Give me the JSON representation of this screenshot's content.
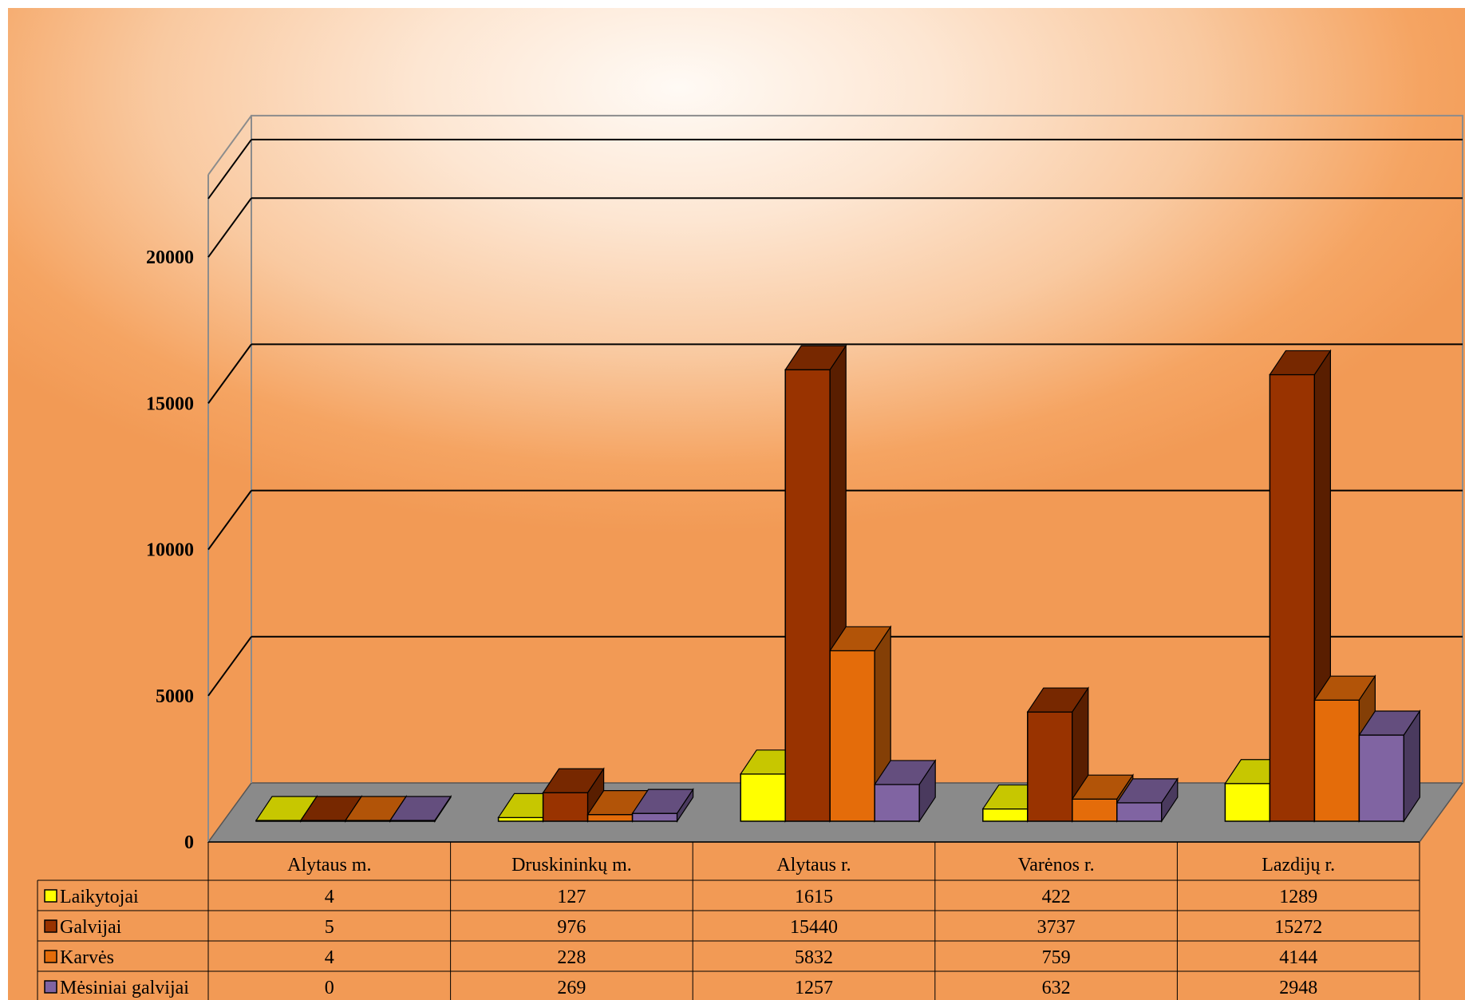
{
  "chart_data": {
    "type": "bar",
    "title": "",
    "xlabel": "",
    "ylabel": "",
    "ylim": [
      0,
      22000
    ],
    "yticks": [
      0,
      5000,
      10000,
      15000,
      20000
    ],
    "grid": true,
    "legend": "data-table-left",
    "categories": [
      "Alytaus m.",
      "Druskininkų m.",
      "Alytaus r.",
      "Varėnos r.",
      "Lazdijų r."
    ],
    "series": [
      {
        "name": "Laikytojai",
        "values": [
          4,
          127,
          1615,
          422,
          1289
        ],
        "color": "#ffff00"
      },
      {
        "name": "Galvijai",
        "values": [
          5,
          976,
          15440,
          3737,
          15272
        ],
        "color": "#993300"
      },
      {
        "name": "Karvės",
        "values": [
          4,
          228,
          5832,
          759,
          4144
        ],
        "color": "#e46c0a"
      },
      {
        "name": "Mėsiniai galvijai",
        "values": [
          0,
          269,
          1257,
          632,
          2948
        ],
        "color": "#8064a2"
      }
    ]
  }
}
